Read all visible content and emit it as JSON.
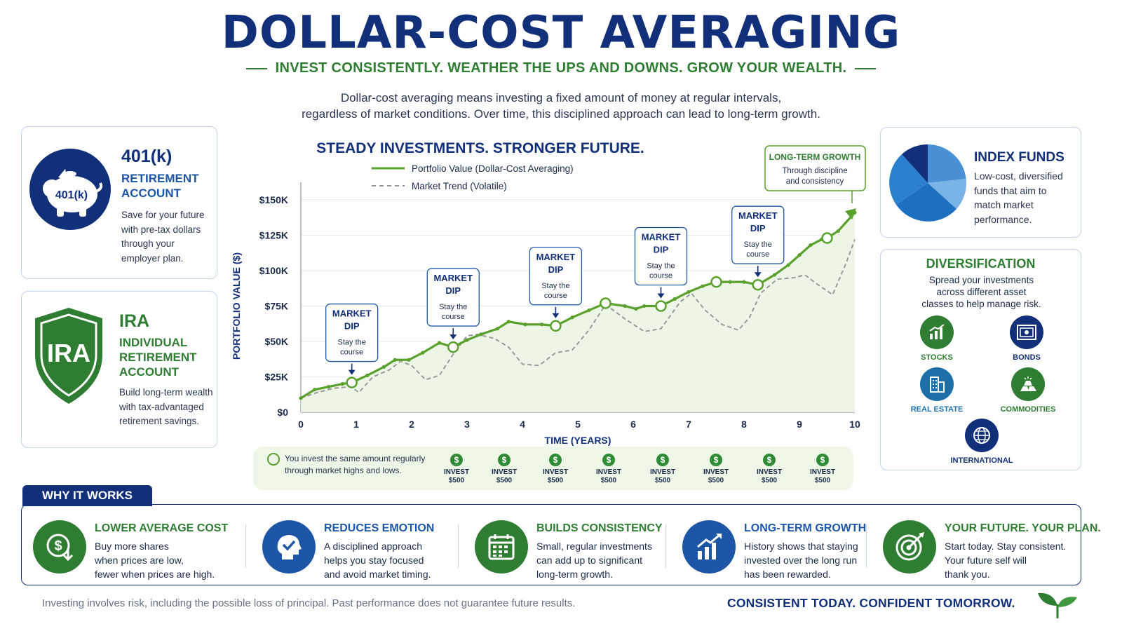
{
  "header": {
    "title": "DOLLAR-COST AVERAGING",
    "subtitle": "INVEST CONSISTENTLY. WEATHER THE UPS AND DOWNS. GROW YOUR WEALTH.",
    "intro_line1": "Dollar-cost averaging means investing a fixed amount of money at regular intervals,",
    "intro_line2": "regardless of market conditions. Over time, this disciplined approach can lead to long-term growth."
  },
  "accounts": {
    "k401": {
      "badge": "401(k)",
      "title": "401(k)",
      "subtitle_line1": "RETIREMENT",
      "subtitle_line2": "ACCOUNT",
      "desc_line1": "Save for your future",
      "desc_line2": "with pre-tax dollars",
      "desc_line3": "through your",
      "desc_line4": "employer plan."
    },
    "ira": {
      "badge": "IRA",
      "title": "IRA",
      "subtitle_line1": "INDIVIDUAL",
      "subtitle_line2": "RETIREMENT",
      "subtitle_line3": "ACCOUNT",
      "desc_line1": "Build long-term wealth",
      "desc_line2": "with tax-advantaged",
      "desc_line3": "retirement savings."
    }
  },
  "index_funds": {
    "title": "INDEX FUNDS",
    "desc_line1": "Low-cost, diversified",
    "desc_line2": "funds that aim to",
    "desc_line3": "match market",
    "desc_line4": "performance."
  },
  "diversification": {
    "title": "DIVERSIFICATION",
    "desc_line1": "Spread your investments",
    "desc_line2": "across different asset",
    "desc_line3": "classes to help manage risk.",
    "assets": [
      "STOCKS",
      "BONDS",
      "REAL ESTATE",
      "COMMODITIES",
      "INTERNATIONAL"
    ]
  },
  "chart_data": {
    "type": "line",
    "title": "STEADY INVESTMENTS. STRONGER FUTURE.",
    "xlabel": "TIME (YEARS)",
    "ylabel": "PORTFOLIO VALUE ($)",
    "xlim": [
      0,
      10
    ],
    "ylim": [
      0,
      150000
    ],
    "x_ticks": [
      "0",
      "1",
      "2",
      "3",
      "4",
      "5",
      "6",
      "7",
      "8",
      "9",
      "10"
    ],
    "y_ticks": [
      "$0",
      "$25K",
      "$50K",
      "$75K",
      "$100K",
      "$125K",
      "$150K"
    ],
    "legend": [
      {
        "label": "Portfolio Value",
        "suffix": "(Dollar-Cost Averaging)"
      },
      {
        "label": "Market Trend",
        "suffix": "(Volatile)"
      }
    ],
    "series": [
      {
        "name": "Portfolio Value",
        "color": "#5aa02c",
        "x": [
          0,
          0.25,
          0.5,
          0.75,
          0.92,
          1.2,
          1.5,
          1.7,
          1.95,
          2.2,
          2.5,
          2.75,
          3.0,
          3.25,
          3.55,
          3.75,
          4.05,
          4.35,
          4.6,
          4.9,
          5.2,
          5.5,
          5.85,
          6.05,
          6.2,
          6.5,
          6.75,
          7.0,
          7.25,
          7.5,
          7.75,
          8.0,
          8.25,
          8.55,
          8.8,
          9.0,
          9.2,
          9.4,
          9.5,
          9.7,
          10.0
        ],
        "y": [
          10000,
          16000,
          18000,
          20000,
          21000,
          26000,
          32000,
          37000,
          37000,
          42000,
          49000,
          46000,
          51000,
          55000,
          59000,
          64000,
          62000,
          62000,
          61000,
          67000,
          72000,
          77000,
          75000,
          73000,
          75000,
          75000,
          80000,
          85000,
          89000,
          92000,
          92000,
          92000,
          90000,
          97000,
          104000,
          111000,
          118000,
          122000,
          123000,
          128000,
          141000
        ]
      },
      {
        "name": "Market Trend",
        "color": "#9a9a9a",
        "x": [
          0,
          0.3,
          0.6,
          0.9,
          1.05,
          1.3,
          1.6,
          1.8,
          2.0,
          2.25,
          2.5,
          2.75,
          3.0,
          3.2,
          3.5,
          3.75,
          4.0,
          4.3,
          4.6,
          4.9,
          5.2,
          5.5,
          5.85,
          6.2,
          6.5,
          6.85,
          7.05,
          7.3,
          7.6,
          7.9,
          8.1,
          8.3,
          8.6,
          8.9,
          9.1,
          9.3,
          9.6,
          9.85,
          10.0
        ],
        "y": [
          10000,
          14000,
          17000,
          18000,
          14000,
          25000,
          30000,
          36000,
          33000,
          23000,
          26000,
          41000,
          54000,
          55000,
          52000,
          46000,
          34000,
          33000,
          42000,
          44000,
          58000,
          76000,
          66000,
          57000,
          59000,
          78000,
          84000,
          72000,
          62000,
          58000,
          67000,
          84000,
          94000,
          95000,
          97000,
          91000,
          83000,
          106000,
          122000
        ]
      }
    ],
    "markers": [
      {
        "x": 0.92,
        "y": 21000
      },
      {
        "x": 2.75,
        "y": 46000
      },
      {
        "x": 4.6,
        "y": 61000
      },
      {
        "x": 5.5,
        "y": 77000
      },
      {
        "x": 6.5,
        "y": 75000
      },
      {
        "x": 7.5,
        "y": 92000
      },
      {
        "x": 8.25,
        "y": 90000
      },
      {
        "x": 9.5,
        "y": 123000
      }
    ],
    "annotations": [
      {
        "title": "MARKET DIP",
        "text": "Stay the course",
        "x": 0.92,
        "y": 21000
      },
      {
        "title": "MARKET DIP",
        "text": "Stay the course",
        "x": 2.75,
        "y": 46000
      },
      {
        "title": "MARKET DIP",
        "text": "Stay the course",
        "x": 4.6,
        "y": 61000
      },
      {
        "title": "MARKET DIP",
        "text": "Stay the course",
        "x": 6.5,
        "y": 75000
      },
      {
        "title": "MARKET DIP",
        "text": "Stay the course",
        "x": 8.25,
        "y": 90000
      }
    ],
    "callout": {
      "title": "LONG-TERM GROWTH",
      "text_line1": "Through discipline",
      "text_line2": "and consistency"
    }
  },
  "invest_strip": {
    "text_line1": "You invest the same amount regularly",
    "text_line2": "through market highs and lows.",
    "coin_symbol": "$",
    "item_label": "INVEST",
    "item_amount": "$500",
    "count": 8
  },
  "why_it_works": {
    "tab_label": "WHY IT WORKS",
    "items": [
      {
        "title": "LOWER AVERAGE COST",
        "color": "#2f7d32",
        "icon": "dollar-down-icon",
        "d1": "Buy more shares",
        "d2": "when prices are low,",
        "d3": "fewer when prices are high."
      },
      {
        "title": "REDUCES EMOTION",
        "color": "#1d56a6",
        "icon": "head-check-icon",
        "d1": "A disciplined approach",
        "d2": "helps you stay focused",
        "d3": "and avoid market timing."
      },
      {
        "title": "BUILDS CONSISTENCY",
        "color": "#2f7d32",
        "icon": "calendar-icon",
        "d1": "Small, regular investments",
        "d2": "can add up to significant",
        "d3": "long-term growth."
      },
      {
        "title": "LONG-TERM GROWTH",
        "color": "#1d56a6",
        "icon": "growth-chart-icon",
        "d1": "History shows that staying",
        "d2": "invested over the long run",
        "d3": "has been rewarded."
      },
      {
        "title": "YOUR FUTURE. YOUR PLAN.",
        "color": "#2f7d32",
        "icon": "target-icon",
        "d1": "Start today. Stay consistent.",
        "d2": "Your future self will",
        "d3": "thank you."
      }
    ]
  },
  "footer": {
    "disclaimer": "Investing involves risk, including the possible loss of principal. Past performance does not guarantee future results.",
    "tagline": "CONSISTENT TODAY. CONFIDENT TOMORROW."
  },
  "colors": {
    "navy": "#12307a",
    "green": "#2f7d32",
    "blue": "#1d56a6",
    "light_green": "#5aa02c"
  }
}
